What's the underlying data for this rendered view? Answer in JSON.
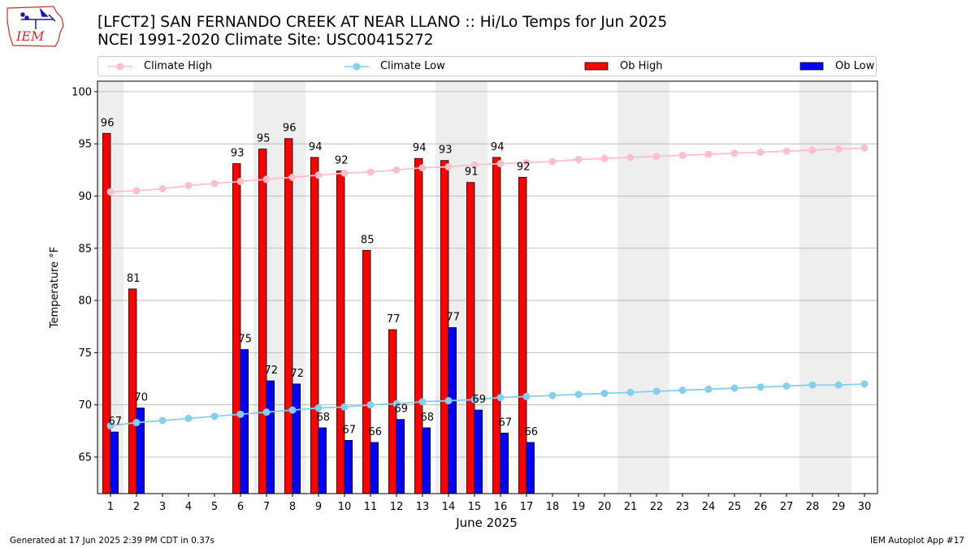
{
  "title_line1": "[LFCT2] SAN FERNANDO CREEK  AT NEAR LLANO :: Hi/Lo Temps for Jun 2025",
  "title_line2": "NCEI 1991-2020 Climate Site: USC00415272",
  "logo_text": "IEM",
  "footer_left": "Generated at 17 Jun 2025 2:39 PM CDT in 0.37s",
  "footer_right": "IEM Autoplot App #17",
  "colors": {
    "climate_high": "#ffc0cb",
    "climate_low": "#87ceeb",
    "ob_high": "#ff0000",
    "ob_low": "#0000ff",
    "weekend_shade": "#eeeeee",
    "grid": "#b0b0b0"
  },
  "legend": [
    {
      "label": "Climate High",
      "kind": "line",
      "color": "#ffc0cb"
    },
    {
      "label": "Climate Low",
      "kind": "line",
      "color": "#87ceeb"
    },
    {
      "label": "Ob High",
      "kind": "bar",
      "color": "#ff0000"
    },
    {
      "label": "Ob Low",
      "kind": "bar",
      "color": "#0000ff"
    }
  ],
  "chart_data": {
    "type": "bar",
    "xlabel": "June 2025",
    "ylabel": "Temperature °F",
    "ylim": [
      61.5,
      101
    ],
    "yticks": [
      65,
      70,
      75,
      80,
      85,
      90,
      95,
      100
    ],
    "grid": true,
    "legend_position": "top",
    "days": [
      1,
      2,
      3,
      4,
      5,
      6,
      7,
      8,
      9,
      10,
      11,
      12,
      13,
      14,
      15,
      16,
      17,
      18,
      19,
      20,
      21,
      22,
      23,
      24,
      25,
      26,
      27,
      28,
      29,
      30
    ],
    "shaded_days": [
      1,
      7,
      8,
      14,
      15,
      21,
      22,
      28,
      29
    ],
    "series": [
      {
        "name": "Ob High",
        "kind": "bar",
        "values": [
          96,
          81,
          null,
          null,
          null,
          93,
          95,
          96,
          94,
          92,
          85,
          77,
          94,
          93,
          91,
          94,
          92,
          null,
          null,
          null,
          null,
          null,
          null,
          null,
          null,
          null,
          null,
          null,
          null,
          null
        ],
        "plotted": [
          96.0,
          81.1,
          null,
          null,
          null,
          93.1,
          94.5,
          95.5,
          93.7,
          92.4,
          84.8,
          77.2,
          93.6,
          93.4,
          91.3,
          93.7,
          91.8,
          null,
          null,
          null,
          null,
          null,
          null,
          null,
          null,
          null,
          null,
          null,
          null,
          null
        ]
      },
      {
        "name": "Ob Low",
        "kind": "bar",
        "values": [
          67,
          70,
          null,
          null,
          null,
          75,
          72,
          72,
          68,
          67,
          66,
          69,
          68,
          77,
          69,
          67,
          66,
          null,
          null,
          null,
          null,
          null,
          null,
          null,
          null,
          null,
          null,
          null,
          null,
          null
        ],
        "plotted": [
          67.4,
          69.7,
          null,
          null,
          null,
          75.3,
          72.3,
          72.0,
          67.8,
          66.6,
          66.4,
          68.6,
          67.8,
          77.4,
          69.5,
          67.3,
          66.4,
          null,
          null,
          null,
          null,
          null,
          null,
          null,
          null,
          null,
          null,
          null,
          null,
          null
        ]
      },
      {
        "name": "Climate High",
        "kind": "line",
        "values": [
          90.4,
          90.5,
          90.7,
          91.0,
          91.2,
          91.4,
          91.6,
          91.8,
          92.0,
          92.2,
          92.3,
          92.5,
          92.7,
          92.8,
          93.0,
          93.1,
          93.2,
          93.3,
          93.5,
          93.6,
          93.7,
          93.8,
          93.9,
          94.0,
          94.1,
          94.2,
          94.3,
          94.4,
          94.5,
          94.6
        ]
      },
      {
        "name": "Climate Low",
        "kind": "line",
        "values": [
          68.0,
          68.3,
          68.5,
          68.7,
          68.9,
          69.1,
          69.3,
          69.5,
          69.7,
          69.8,
          70.0,
          70.1,
          70.3,
          70.4,
          70.5,
          70.7,
          70.8,
          70.9,
          71.0,
          71.1,
          71.2,
          71.3,
          71.4,
          71.5,
          71.6,
          71.7,
          71.8,
          71.9,
          71.9,
          72.0
        ]
      }
    ]
  }
}
